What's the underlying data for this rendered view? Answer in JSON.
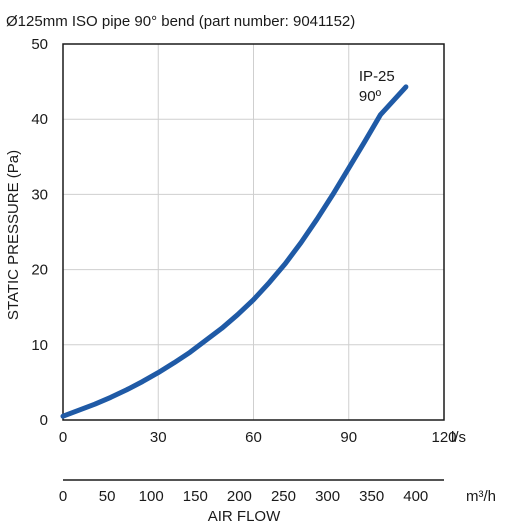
{
  "chart_data": {
    "type": "line",
    "title": "Ø125mm ISO pipe 90° bend (part number: 9041152)",
    "ylabel": "STATIC PRESSURE (Pa)",
    "xlabel": "AIR FLOW",
    "x_unit": "l/s",
    "x2_unit": "m³/h",
    "xlim": [
      0,
      120
    ],
    "ylim": [
      0,
      50
    ],
    "x_ticks": [
      0,
      30,
      60,
      90,
      120
    ],
    "y_ticks": [
      0,
      10,
      20,
      30,
      40,
      50
    ],
    "x2_ticks": [
      0,
      50,
      100,
      150,
      200,
      250,
      300,
      350,
      400
    ],
    "grid": true,
    "series": [
      {
        "name": "IP-25 90º",
        "label_lines": [
          "IP-25",
          "90º"
        ],
        "color": "#1f5aa6",
        "x": [
          0,
          5,
          10,
          15,
          20,
          25,
          30,
          35,
          40,
          45,
          50,
          55,
          60,
          65,
          70,
          75,
          80,
          85,
          90,
          95,
          100,
          108
        ],
        "y": [
          0.5,
          1.3,
          2.1,
          3.0,
          4.0,
          5.1,
          6.3,
          7.6,
          9.0,
          10.6,
          12.2,
          14.0,
          16.0,
          18.3,
          20.8,
          23.6,
          26.7,
          30.0,
          33.5,
          37.0,
          40.6,
          44.3
        ]
      }
    ]
  }
}
